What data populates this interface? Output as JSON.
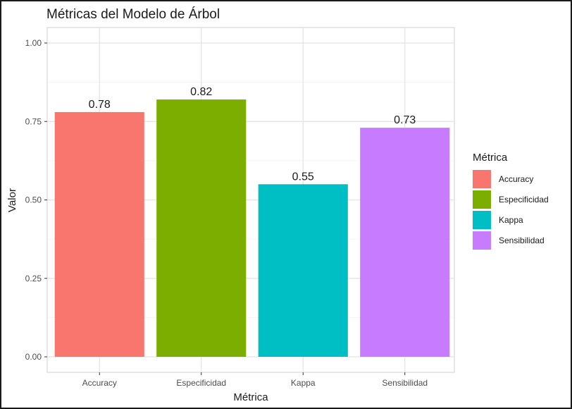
{
  "chart_data": {
    "type": "bar",
    "title": "Métricas del Modelo de Árbol",
    "xlabel": "Métrica",
    "ylabel": "Valor",
    "categories": [
      "Accuracy",
      "Especificidad",
      "Kappa",
      "Sensibilidad"
    ],
    "values": [
      0.78,
      0.82,
      0.55,
      0.73
    ],
    "data_labels": [
      "0.78",
      "0.82",
      "0.55",
      "0.73"
    ],
    "colors": [
      "#F8766D",
      "#7CAE00",
      "#00BFC4",
      "#C77CFF"
    ],
    "ylim": [
      0,
      1.0
    ],
    "yticks": [
      0.0,
      0.25,
      0.5,
      0.75,
      1.0
    ],
    "ytick_labels": [
      "0.00",
      "0.25",
      "0.50",
      "0.75",
      "1.00"
    ],
    "grid": true,
    "legend": {
      "title": "Métrica",
      "entries": [
        "Accuracy",
        "Especificidad",
        "Kappa",
        "Sensibilidad"
      ],
      "placement": "right"
    }
  }
}
